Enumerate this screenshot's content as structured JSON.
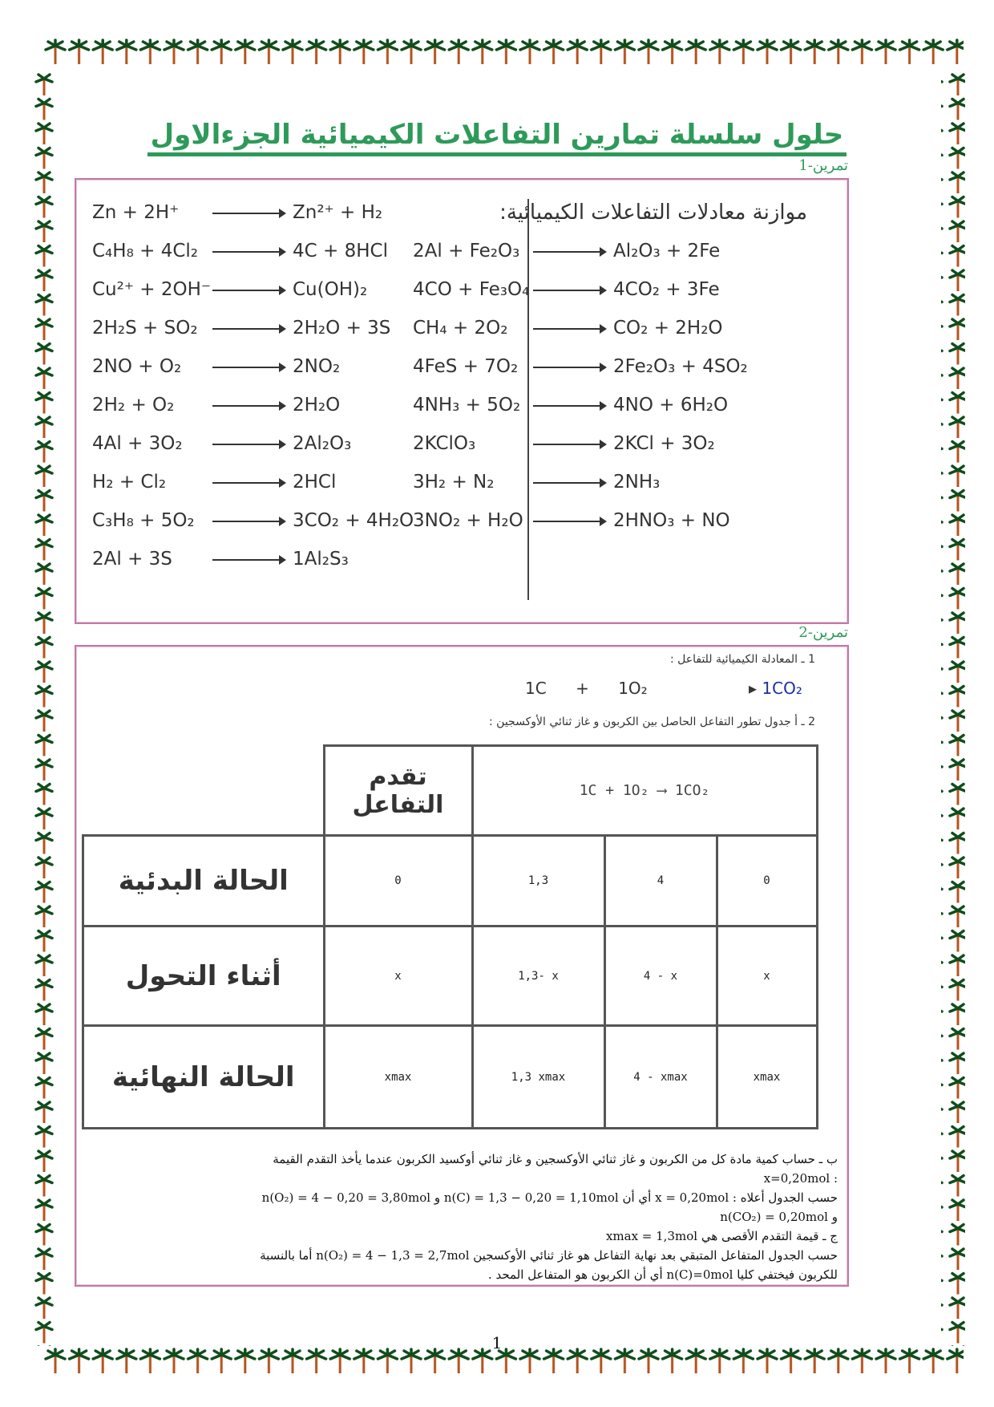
{
  "title": "حلول سلسلة تمارين التفاعلات الكيميائية الجزءالاول",
  "colors": {
    "accent_green": "#2e9a5a",
    "box_border": "#c07aa6",
    "palm_trunk": "#b5541c",
    "palm_leaves": "#0f4d1c"
  },
  "exercise1": {
    "label": "تمرين-1",
    "right_heading": "موازنة معادلات التفاعلات الكيميائية:",
    "left_equations": [
      {
        "r": "Zn + 2H⁺",
        "p": "Zn²⁺ + H₂"
      },
      {
        "r": "C₄H₈ + 4Cl₂",
        "p": "4C + 8HCl"
      },
      {
        "r": "Cu²⁺ + 2OH⁻",
        "p": "Cu(OH)₂"
      },
      {
        "r": "2H₂S + SO₂",
        "p": "2H₂O + 3S"
      },
      {
        "r": "2NO + O₂",
        "p": "2NO₂"
      },
      {
        "r": "2H₂ + O₂",
        "p": "2H₂O"
      },
      {
        "r": "4Al + 3O₂",
        "p": "2Al₂O₃"
      },
      {
        "r": "H₂ + Cl₂",
        "p": "2HCl"
      },
      {
        "r": "C₃H₈ + 5O₂",
        "p": "3CO₂ + 4H₂O"
      },
      {
        "r": "2Al + 3S",
        "p": "1Al₂S₃"
      }
    ],
    "right_equations": [
      {
        "r": "2Al + Fe₂O₃",
        "p": "Al₂O₃ + 2Fe"
      },
      {
        "r": "4CO + Fe₃O₄",
        "p": "4CO₂ + 3Fe"
      },
      {
        "r": "CH₄ + 2O₂",
        "p": "CO₂ + 2H₂O"
      },
      {
        "r": "4FeS + 7O₂",
        "p": "2Fe₂O₃ + 4SO₂"
      },
      {
        "r": "4NH₃ + 5O₂",
        "p": "4NO + 6H₂O"
      },
      {
        "r": "2KClO₃",
        "p": "2KCl + 3O₂"
      },
      {
        "r": "3H₂ + N₂",
        "p": "2NH₃"
      },
      {
        "r": "3NO₂ + H₂O",
        "p": "2HNO₃ + NO"
      }
    ]
  },
  "exercise2": {
    "label": "تمرين-2",
    "q1": "1 ـ المعادلة الكيميائية للتفاعل :",
    "equation": {
      "r1": "1C",
      "plus": "+",
      "r2": "1O₂",
      "p": "1CO₂"
    },
    "q2": "2 ـ أ جدول تطور التفاعل الحاصل بين الكربون و غاز ثنائي الأوكسجين :",
    "table": {
      "header_left": "تقدم التفاعل",
      "header_equation": "1C   +   1O₂  ⟶ 1CO₂",
      "rows": [
        {
          "label": "الحالة البدئية",
          "cells": [
            "0",
            "1,3",
            "4",
            "0"
          ]
        },
        {
          "label": "أثناء التحول",
          "cells": [
            "x",
            "1,3- x",
            "4 - x",
            "x"
          ]
        },
        {
          "label": "الحالة النهائية",
          "cells": [
            "xmax",
            "1,3  xmax",
            "4 - xmax",
            "xmax"
          ]
        }
      ]
    },
    "lines": [
      "ب ـ حساب كمية مادة كل من الكربون و غاز ثنائي الأوكسجين و غاز ثنائي أوكسيد الكربون عندما يأخذ التقدم القيمة",
      ": x=0,20mol",
      "حسب الجدول أعلاه : x = 0,20mol أي أن n(C) = 1,3 − 0,20 = 1,10mol و n(O₂) = 4 − 0,20 = 3,80mol",
      "و n(CO₂) = 0,20mol",
      "ج ـ قيمة التقدم الأقصى هي xmax = 1,3mol",
      "حسب الجدول المتفاعل المتبقي بعد نهاية التفاعل هو غاز ثنائي الأوكسجين n(O₂) = 4 − 1,3 = 2,7mol أما بالنسبة",
      "للكربون فيختفي كليا n(C)=0mol أي أن الكربون هو المتفاعل المحد ."
    ]
  },
  "page_number": "1"
}
